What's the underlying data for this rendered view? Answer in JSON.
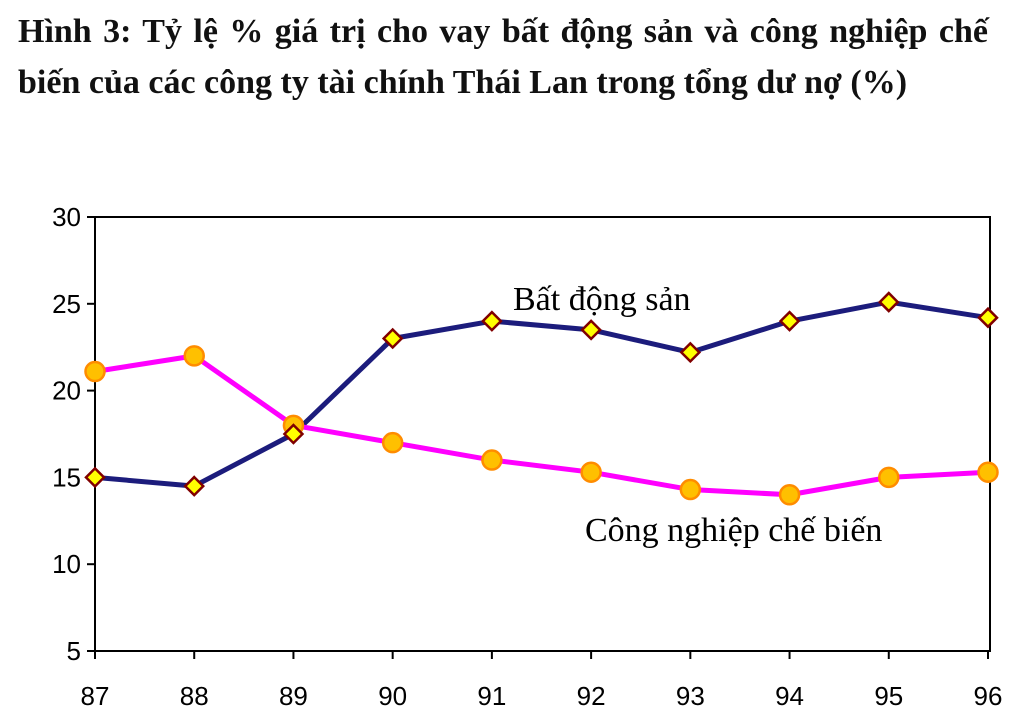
{
  "title": "Hình 3: Tỷ lệ % giá trị cho vay bất động sản và công nghiệp chế biến của các công ty tài chính Thái Lan trong tổng dư nợ (%)",
  "chart_data": {
    "type": "line",
    "title": "Hình 3: Tỷ lệ % giá trị cho vay bất động sản và công nghiệp chế biến của các công ty tài chính Thái Lan trong tổng dư nợ (%)",
    "xlabel": "",
    "ylabel": "",
    "categories": [
      "87",
      "88",
      "89",
      "90",
      "91",
      "92",
      "93",
      "94",
      "95",
      "96"
    ],
    "ylim": [
      5,
      30
    ],
    "yticks": [
      5,
      10,
      15,
      20,
      25,
      30
    ],
    "grid": false,
    "legend": "none (series labelled inline)",
    "series": [
      {
        "name": "Bất động sản",
        "values": [
          15.0,
          14.5,
          17.5,
          23.0,
          24.0,
          23.5,
          22.2,
          24.0,
          25.1,
          24.2
        ],
        "color": "#1c1c7c",
        "marker": "diamond",
        "marker_fill": "#ffff00",
        "marker_stroke": "#800000"
      },
      {
        "name": "Công nghiệp chế biến",
        "values": [
          21.1,
          22.0,
          18.0,
          17.0,
          16.0,
          15.3,
          14.3,
          14.0,
          15.0,
          15.3
        ],
        "color": "#ff00ff",
        "marker": "circle",
        "marker_fill": "#ffc000",
        "marker_stroke": "#ff8c00"
      }
    ]
  }
}
